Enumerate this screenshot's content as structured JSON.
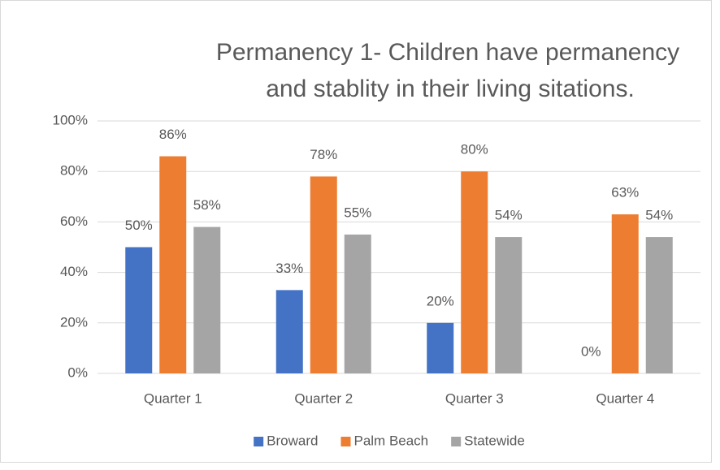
{
  "chart_data": {
    "type": "bar",
    "title": [
      "Permanency 1- Children have permanency",
      "and stablity in their living sitations."
    ],
    "categories": [
      "Quarter 1",
      "Quarter 2",
      "Quarter 3",
      "Quarter 4"
    ],
    "series": [
      {
        "name": "Broward",
        "color": "#4472c4",
        "values": [
          50,
          33,
          20,
          0
        ],
        "value_labels": [
          "50%",
          "33%",
          "20%",
          "0%"
        ]
      },
      {
        "name": "Palm Beach",
        "color": "#ed7d31",
        "values": [
          86,
          78,
          80,
          63
        ],
        "value_labels": [
          "86%",
          "78%",
          "80%",
          "63%"
        ]
      },
      {
        "name": "Statewide",
        "color": "#a5a5a5",
        "values": [
          58,
          55,
          54,
          54
        ],
        "value_labels": [
          "58%",
          "55%",
          "54%",
          "54%"
        ]
      }
    ],
    "ylim": [
      0,
      100
    ],
    "yticks": [
      {
        "value": 0,
        "label": "0%"
      },
      {
        "value": 20,
        "label": "20%"
      },
      {
        "value": 40,
        "label": "40%"
      },
      {
        "value": 60,
        "label": "60%"
      },
      {
        "value": 80,
        "label": "80%"
      },
      {
        "value": 100,
        "label": "100%"
      }
    ],
    "grid": true,
    "legend": "bottom"
  }
}
